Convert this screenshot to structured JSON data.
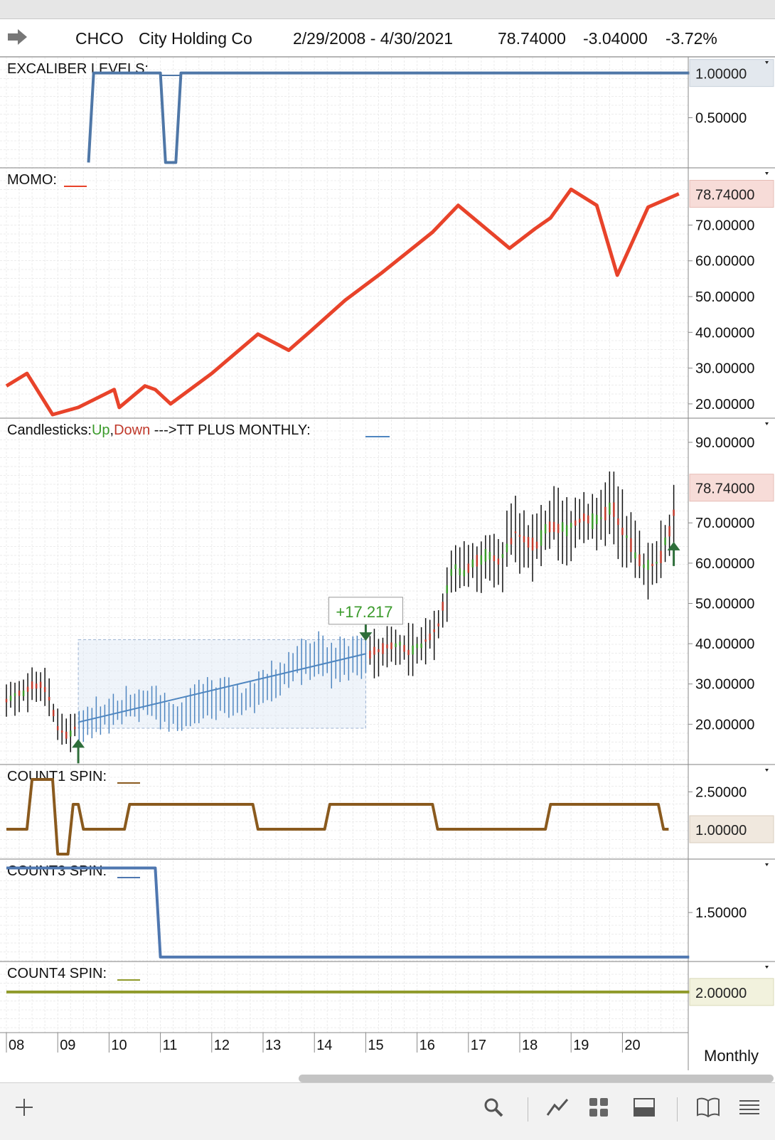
{
  "header": {
    "ticker": "CHCO",
    "company": "City Holding Co",
    "date_range": "2/29/2008 - 4/30/2021",
    "last": "78.74000",
    "change": "-3.04000",
    "change_pct": "-3.72%"
  },
  "periodicity": "Monthly",
  "colors": {
    "excaliber": "#4f77a7",
    "momo": "#e8432a",
    "tt_plus": "#4f86c0",
    "up": "#3a9a2a",
    "down": "#c0392b",
    "count1": "#8a5a1e",
    "count3": "#4f77b0",
    "count4": "#8f9a2a",
    "arrow": "#2e6e3a"
  },
  "chart_data": [
    {
      "name": "excaliber",
      "type": "line",
      "title": "EXCALIBER LEVELS:",
      "y_ticks": [
        "1.00000",
        "0.50000"
      ],
      "last_value": "1.00000",
      "x": [
        2009.6,
        2009.7,
        2011.0,
        2011.1,
        2011.3,
        2011.4,
        2021.3
      ],
      "values": [
        0,
        1,
        1,
        0,
        0,
        1,
        1
      ]
    },
    {
      "name": "momo",
      "type": "line",
      "title": "MOMO:",
      "y_ticks": [
        "70.00000",
        "60.00000",
        "50.00000",
        "40.00000",
        "30.00000",
        "20.00000"
      ],
      "last_value": "78.74000",
      "x": [
        2008.0,
        2008.4,
        2008.9,
        2009.4,
        2010.1,
        2010.2,
        2010.7,
        2010.9,
        2011.2,
        2012.0,
        2012.9,
        2013.5,
        2013.9,
        2014.6,
        2015.3,
        2016.3,
        2016.8,
        2017.8,
        2018.3,
        2018.6,
        2019.0,
        2019.5,
        2019.9,
        2020.5,
        2021.1
      ],
      "values": [
        25,
        28.5,
        17,
        19,
        24,
        19,
        25,
        24,
        20,
        28.5,
        39.5,
        35,
        40,
        49,
        56.5,
        68,
        75.5,
        63.5,
        69,
        72,
        80,
        75.5,
        56,
        75,
        78.74
      ]
    },
    {
      "name": "price",
      "type": "candlestick",
      "title": "Candlesticks:",
      "legend_up": "Up",
      "legend_down": "Down",
      "overlay_label": "--->TT PLUS MONTHLY:",
      "annotation": "+17.217",
      "y_ticks": [
        "90.00000",
        "70.00000",
        "60.00000",
        "50.00000",
        "40.00000",
        "30.00000",
        "20.00000"
      ],
      "last_value": "78.74000",
      "close_path_x": [
        2008.0,
        2008.3,
        2008.6,
        2008.8,
        2009.0,
        2009.2,
        2009.4,
        2009.7,
        2010.0,
        2010.4,
        2010.8,
        2011.0,
        2011.4,
        2011.8,
        2012.2,
        2012.6,
        2013.0,
        2013.3,
        2013.6,
        2014.0,
        2014.4,
        2014.8,
        2015.2,
        2015.6,
        2015.9,
        2016.2,
        2016.4,
        2016.7,
        2016.9,
        2017.3,
        2017.6,
        2017.9,
        2018.3,
        2018.6,
        2018.9,
        2019.2,
        2019.5,
        2019.8,
        2020.1,
        2020.4,
        2020.7,
        2020.9,
        2021.1
      ],
      "close_path_y": [
        26,
        28,
        30,
        28,
        19,
        17,
        20,
        22,
        22,
        25,
        26,
        24,
        22,
        26,
        27,
        25,
        29,
        31,
        35,
        37,
        35,
        37,
        38,
        40,
        38,
        41,
        44,
        59,
        58,
        62,
        60,
        68,
        64,
        70,
        68,
        71,
        70,
        74,
        66,
        59,
        60,
        67,
        78.74
      ],
      "tt_plus_x": [
        2009.4,
        2015.0
      ],
      "tt_plus_y": [
        20.5,
        37.5
      ],
      "box_x": [
        2009.4,
        2015.0
      ],
      "box_y": [
        19,
        41
      ]
    },
    {
      "name": "count1",
      "type": "line",
      "title": "COUNT1 SPIN:",
      "y_ticks": [
        "2.50000"
      ],
      "last_value": "1.00000",
      "x": [
        2008.0,
        2008.4,
        2008.5,
        2008.9,
        2009.0,
        2009.2,
        2009.3,
        2009.4,
        2009.5,
        2010.3,
        2010.4,
        2012.8,
        2012.9,
        2014.2,
        2014.3,
        2016.3,
        2016.4,
        2018.5,
        2018.6,
        2020.7,
        2020.8,
        2020.9
      ],
      "values": [
        1,
        1,
        3,
        3,
        0,
        0,
        2,
        2,
        1,
        1,
        2,
        2,
        1,
        1,
        2,
        2,
        1,
        1,
        2,
        2,
        1,
        1
      ]
    },
    {
      "name": "count3",
      "type": "line",
      "title": "COUNT3 SPIN:",
      "y_ticks": [
        "1.50000"
      ],
      "x": [
        2008.0,
        2010.9,
        2011.0,
        2021.3
      ],
      "values": [
        2,
        2,
        1,
        1
      ]
    },
    {
      "name": "count4",
      "type": "line",
      "title": "COUNT4 SPIN:",
      "y_ticks": [],
      "last_value": "2.00000",
      "x": [
        2008.0,
        2021.3
      ],
      "values": [
        2,
        2
      ]
    }
  ],
  "x_axis": {
    "labels": [
      "08",
      "09",
      "10",
      "11",
      "12",
      "13",
      "14",
      "15",
      "16",
      "17",
      "18",
      "19",
      "20"
    ]
  },
  "toolbar": {
    "icons": [
      "plus-icon",
      "search-icon",
      "draw-line-icon",
      "grid-icon",
      "panel-icon",
      "book-icon",
      "menu-icon"
    ]
  }
}
